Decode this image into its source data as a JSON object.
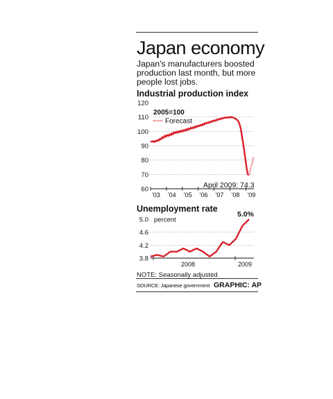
{
  "title": "Japan economy",
  "subtitle": "Japan's manufacturers boosted production last month, but more people lost jobs.",
  "note": "NOTE: Seasonally adjusted",
  "source": "SOURCE: Japanese government",
  "credit": "GRAPHIC: AP",
  "colors": {
    "line": "#d8202a",
    "forecast": "#e97078"
  },
  "chart_data": [
    {
      "type": "line",
      "title": "Industrial production index",
      "legend_title": "2005=100",
      "ylim": [
        60,
        120
      ],
      "yticks": [
        "120",
        "110",
        "100",
        "90",
        "80",
        "70",
        "60"
      ],
      "xticks": [
        "'03",
        "'04",
        "'05",
        "'06",
        "'07",
        "'08",
        "'09"
      ],
      "annotation": "April 2009: 74.3",
      "grid": true,
      "series": [
        {
          "values": [
            93,
            92.8,
            93.2,
            92.5,
            93.5,
            93,
            94,
            93.6,
            95,
            94.5,
            96,
            95.4,
            97,
            96.2,
            97.5,
            96.8,
            98,
            97.3,
            98.8,
            98,
            99.5,
            98.8,
            99.8,
            99,
            100.2,
            99.5,
            100.6,
            99.8,
            101,
            100.4,
            101.5,
            100.8,
            102,
            101.4,
            102.6,
            102,
            103,
            102.4,
            103.6,
            103,
            104,
            103.6,
            104.6,
            104,
            105.2,
            104.6,
            105.8,
            105.4,
            106.2,
            105.8,
            106.8,
            106.4,
            107.3,
            107,
            107.8,
            107.4,
            108.3,
            108,
            108.8,
            108.4,
            109.2,
            109,
            109.6,
            109.4,
            109.8,
            109.5,
            110,
            109.6,
            110.2,
            109.8,
            109.6,
            109,
            108.6,
            108,
            107,
            105,
            102,
            97,
            92,
            86,
            80,
            74,
            70,
            69.5
          ]
        },
        {
          "name": "Forecast",
          "values": [
            69.5,
            74.3,
            78,
            82
          ]
        }
      ]
    },
    {
      "type": "line",
      "title": "Unemployment rate",
      "unit_label": "percent",
      "ylim": [
        3.8,
        5.0
      ],
      "yticks": [
        "5.0",
        "4.6",
        "4.2",
        "3.8"
      ],
      "xticks": [
        "2008",
        "2009"
      ],
      "annotation": "5.0%",
      "grid": true,
      "series": [
        {
          "values": [
            3.85,
            3.9,
            3.85,
            4.0,
            4.0,
            4.1,
            4.0,
            4.1,
            4.0,
            3.85,
            4.0,
            4.3,
            4.2,
            4.4,
            4.8,
            5.0
          ]
        }
      ]
    }
  ]
}
